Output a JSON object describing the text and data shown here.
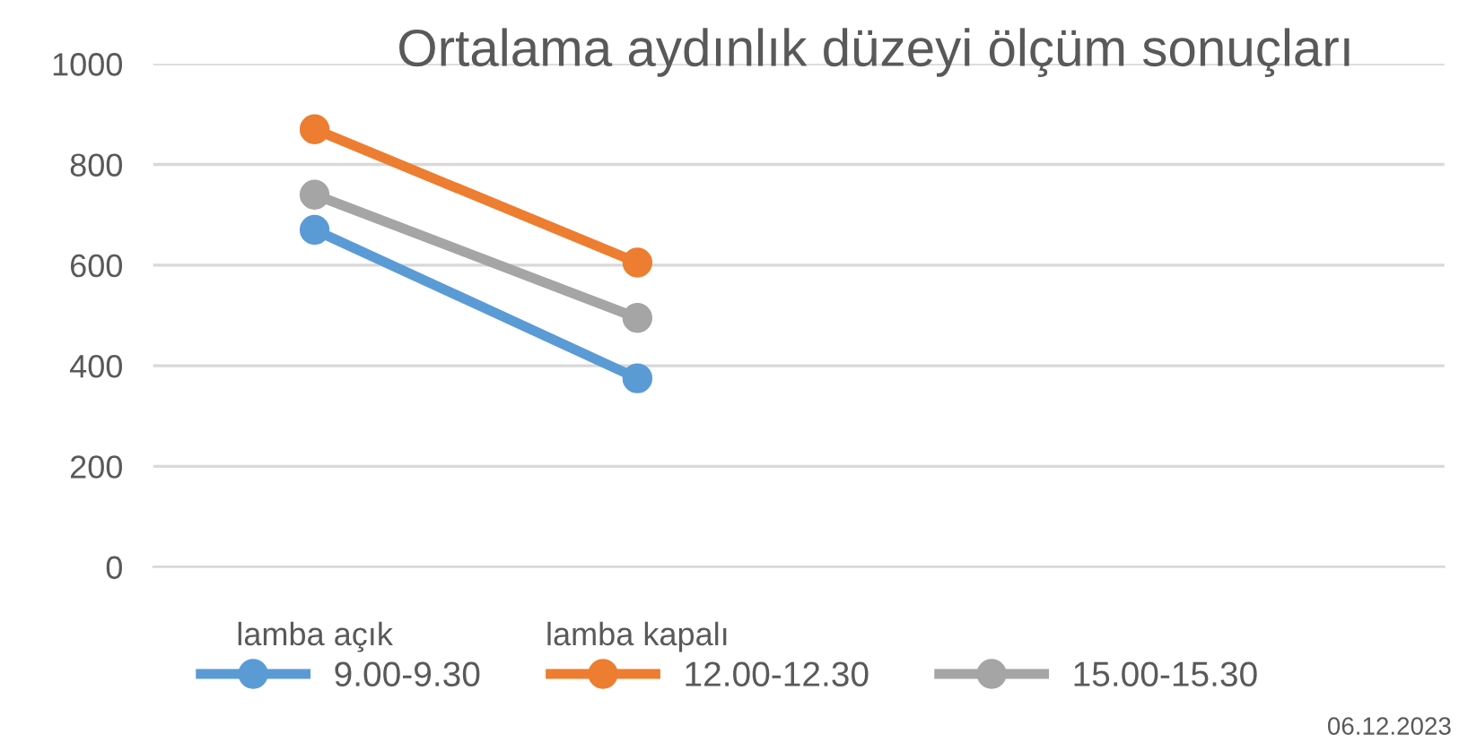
{
  "chart_data": {
    "type": "line",
    "title": "Ortalama aydınlık düzeyi ölçüm sonuçları",
    "categories": [
      "lamba açık",
      "lamba kapalı",
      null,
      null
    ],
    "series": [
      {
        "name": "9.00-9.30",
        "color": "#5b9bd5",
        "values": [
          670,
          375,
          null,
          null
        ]
      },
      {
        "name": "12.00-12.30",
        "color": "#ed7d31",
        "values": [
          870,
          605,
          null,
          null
        ]
      },
      {
        "name": "15.00-15.30",
        "color": "#a5a5a5",
        "values": [
          740,
          495,
          null,
          null
        ]
      }
    ],
    "ylim": [
      0,
      1000
    ],
    "yticks": [
      0,
      200,
      400,
      600,
      800,
      1000
    ],
    "grid": "y",
    "legend": "bottom",
    "marker": "circle",
    "line_style": "solid",
    "annotations": [
      "06.12.2023"
    ]
  }
}
